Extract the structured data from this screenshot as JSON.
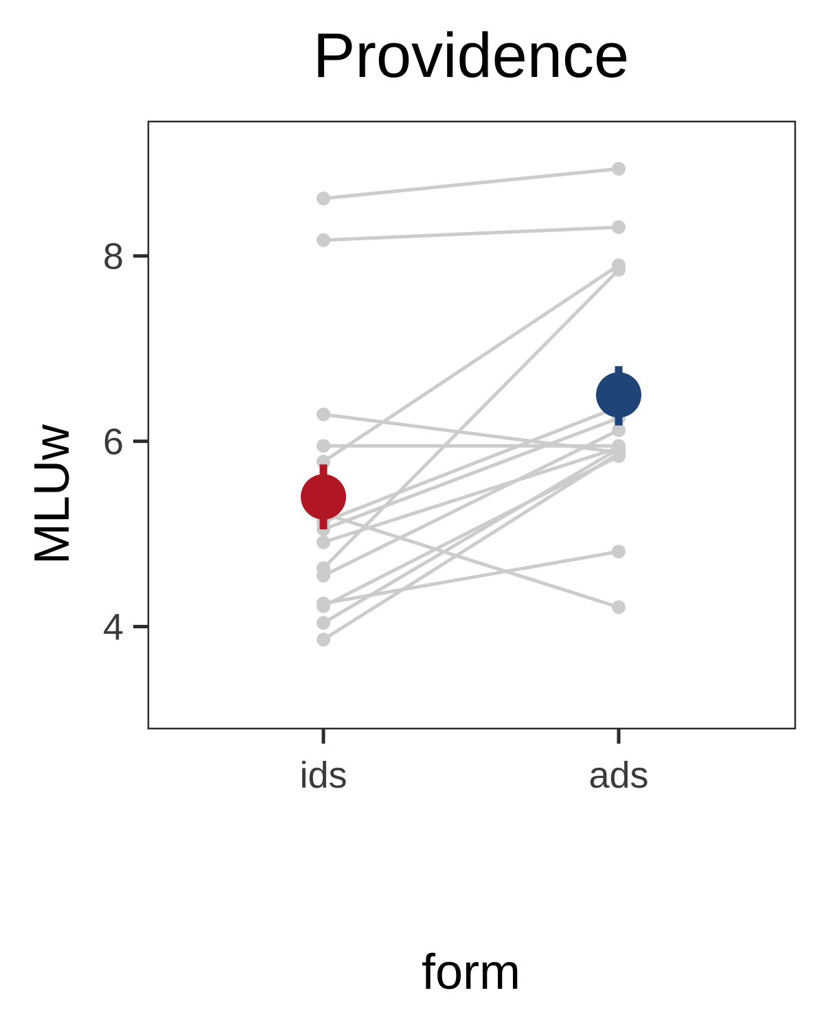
{
  "chart_data": {
    "type": "line",
    "title": "Providence",
    "xlabel": "form",
    "ylabel": "MLUw",
    "categories": [
      "ids",
      "ads"
    ],
    "ylim": [
      2.9,
      9.45
    ],
    "yticks": [
      4,
      6,
      8
    ],
    "grid": false,
    "legend": "none",
    "colors": {
      "individual": "#cccccc",
      "ids": "#b01722",
      "ads": "#1f4477",
      "frame": "#2b2b2b"
    },
    "individual_pairs": [
      {
        "ids": 8.62,
        "ads": 8.94
      },
      {
        "ids": 8.17,
        "ads": 8.31
      },
      {
        "ids": 6.29,
        "ads": 5.88
      },
      {
        "ids": 5.95,
        "ads": 5.95
      },
      {
        "ids": 5.78,
        "ads": 7.9
      },
      {
        "ids": 5.22,
        "ads": 4.21
      },
      {
        "ids": 5.13,
        "ads": 6.37
      },
      {
        "ids": 5.05,
        "ads": 6.25
      },
      {
        "ids": 4.91,
        "ads": 5.93
      },
      {
        "ids": 4.63,
        "ads": 7.85
      },
      {
        "ids": 4.55,
        "ads": 6.12
      },
      {
        "ids": 4.25,
        "ads": 4.81
      },
      {
        "ids": 4.22,
        "ads": 5.84
      },
      {
        "ids": 4.04,
        "ads": 5.92
      },
      {
        "ids": 3.86,
        "ads": 5.87
      }
    ],
    "summary": [
      {
        "form": "ids",
        "mean": 5.4,
        "lower": 5.05,
        "upper": 5.75
      },
      {
        "form": "ads",
        "mean": 6.5,
        "lower": 6.17,
        "upper": 6.81
      }
    ]
  }
}
